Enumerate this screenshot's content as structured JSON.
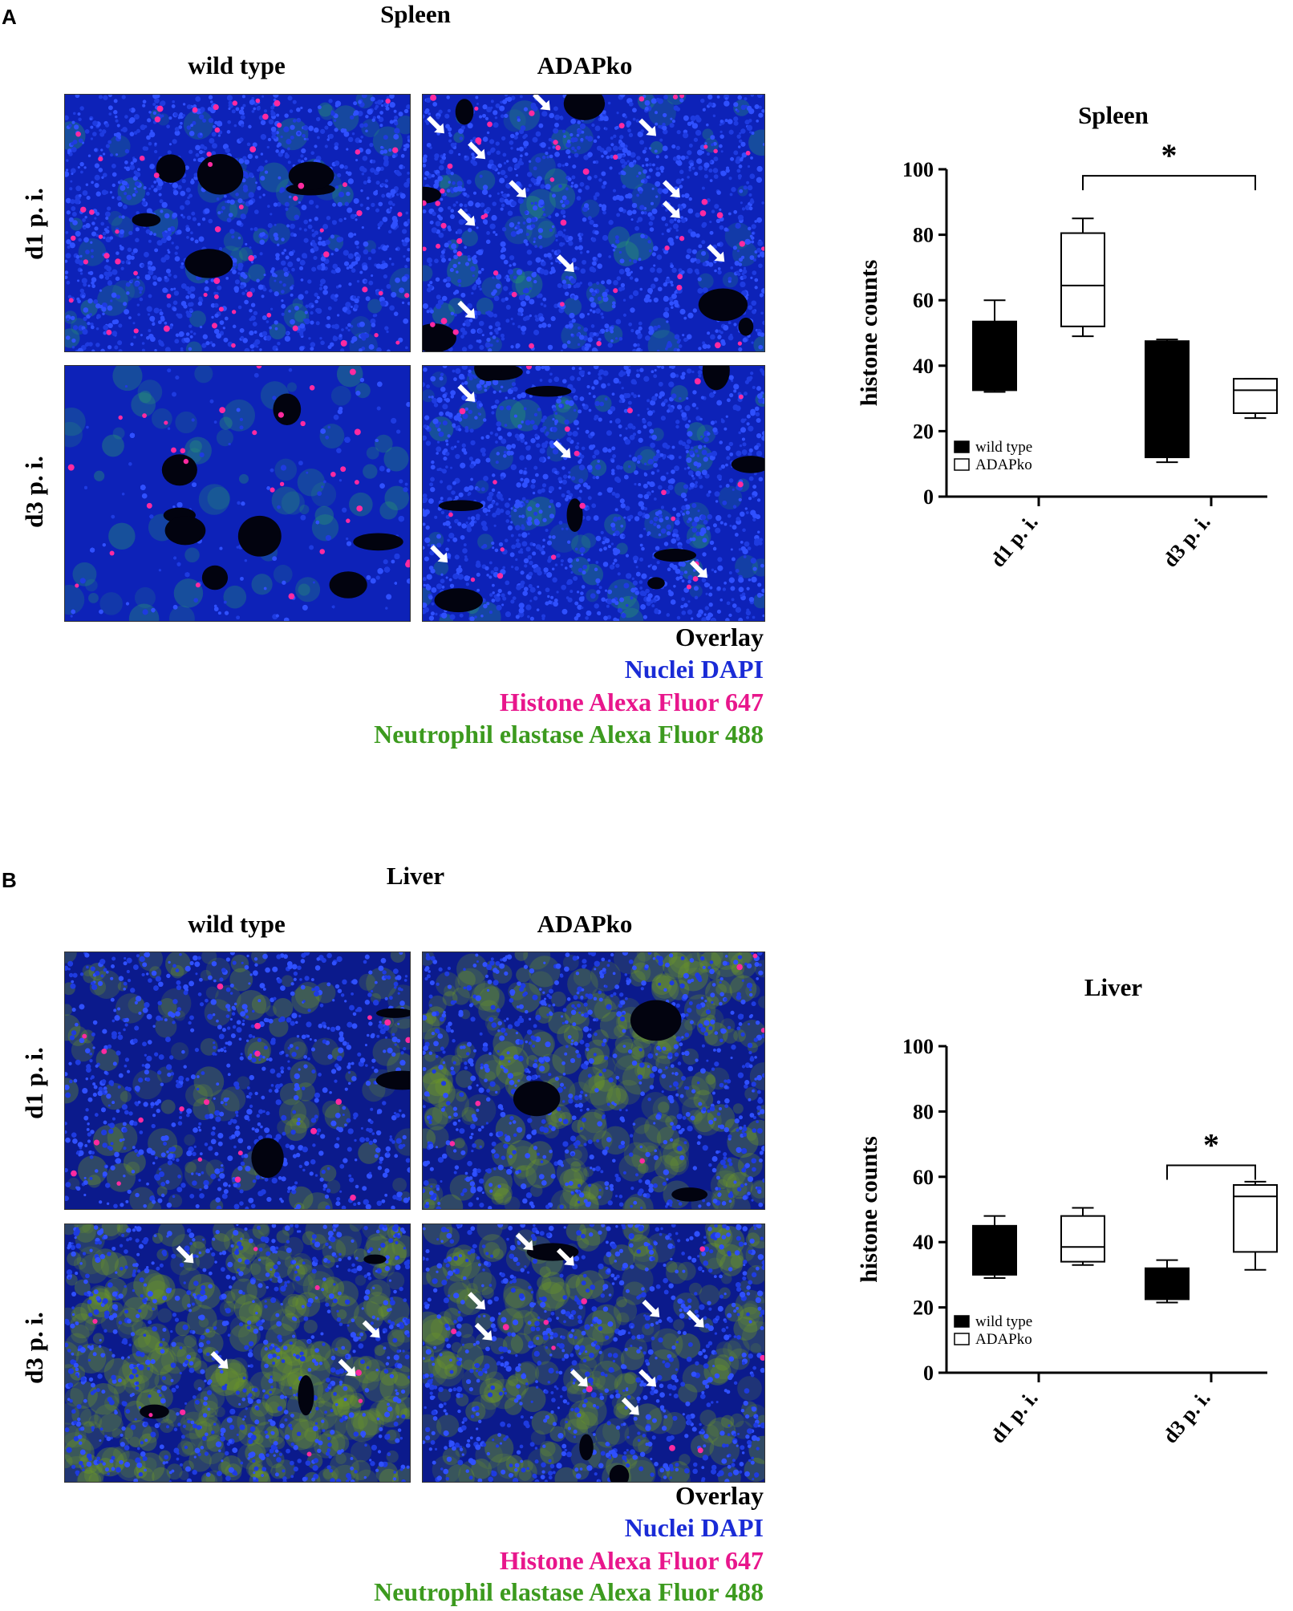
{
  "panelA": {
    "letter": "A",
    "title": "Spleen",
    "col_labels": [
      "wild type",
      "ADAPko"
    ],
    "row_labels": [
      "d1 p. i.",
      "d3 p. i."
    ],
    "legend": [
      "Overlay",
      "Nuclei DAPI",
      "Histone Alexa Fluor 647",
      "Neutrophil elastase Alexa Fluor 488"
    ]
  },
  "panelB": {
    "letter": "B",
    "title": "Liver",
    "col_labels": [
      "wild type",
      "ADAPko"
    ],
    "row_labels": [
      "d1 p. i.",
      "d3 p. i."
    ],
    "legend": [
      "Overlay",
      "Nuclei DAPI",
      "Histone Alexa Fluor 647",
      "Neutrophil elastase Alexa Fluor 488"
    ]
  },
  "colors": {
    "dapi": "#1a2bd6",
    "histone": "#e8168c",
    "elastase": "#3c9a1e",
    "tissue_blue": "#1433c8",
    "tissue_green_liver": "#3f6a2a"
  },
  "chart_data": [
    {
      "type": "box",
      "title": "Spleen",
      "ylabel": "histone counts",
      "ylim": [
        0,
        100
      ],
      "yticks": [
        0,
        20,
        40,
        60,
        80,
        100
      ],
      "categories": [
        "d1 p. i.",
        "d3 p. i."
      ],
      "legend": {
        "position": "bottom-left",
        "entries": [
          "wild type",
          "ADAPko"
        ]
      },
      "series": [
        {
          "name": "wild type",
          "color": "#000000",
          "filled": true,
          "boxes": [
            {
              "min": 32,
              "q1": 32.5,
              "median": 33,
              "q3": 53.5,
              "max": 60
            },
            {
              "min": 10.5,
              "q1": 12,
              "median": 12.5,
              "q3": 47.5,
              "max": 48
            }
          ]
        },
        {
          "name": "ADAPko",
          "color": "#000000",
          "filled": false,
          "boxes": [
            {
              "min": 49,
              "q1": 52,
              "median": 64.5,
              "q3": 80.5,
              "max": 85
            },
            {
              "min": 24,
              "q1": 25.5,
              "median": 32.5,
              "q3": 36,
              "max": 36
            }
          ]
        }
      ],
      "significance": [
        {
          "from": "ADAPko d1 p. i.",
          "to": "ADAPko d3 p. i.",
          "label": "*"
        }
      ]
    },
    {
      "type": "box",
      "title": "Liver",
      "ylabel": "histone counts",
      "ylim": [
        0,
        100
      ],
      "yticks": [
        0,
        20,
        40,
        60,
        80,
        100
      ],
      "categories": [
        "d1 p. i.",
        "d3 p. i."
      ],
      "legend": {
        "position": "bottom-left",
        "entries": [
          "wild type",
          "ADAPko"
        ]
      },
      "series": [
        {
          "name": "wild type",
          "color": "#000000",
          "filled": true,
          "boxes": [
            {
              "min": 29,
              "q1": 30,
              "median": 30.5,
              "q3": 45,
              "max": 48
            },
            {
              "min": 21.5,
              "q1": 22.5,
              "median": 23,
              "q3": 32,
              "max": 34.5
            }
          ]
        },
        {
          "name": "ADAPko",
          "color": "#000000",
          "filled": false,
          "boxes": [
            {
              "min": 33,
              "q1": 34,
              "median": 38.5,
              "q3": 48,
              "max": 50.5
            },
            {
              "min": 31.5,
              "q1": 37,
              "median": 54,
              "q3": 57.5,
              "max": 58.5
            }
          ]
        }
      ],
      "significance": [
        {
          "from": "wild type d3 p. i.",
          "to": "ADAPko d3 p. i.",
          "label": "*"
        }
      ]
    }
  ]
}
